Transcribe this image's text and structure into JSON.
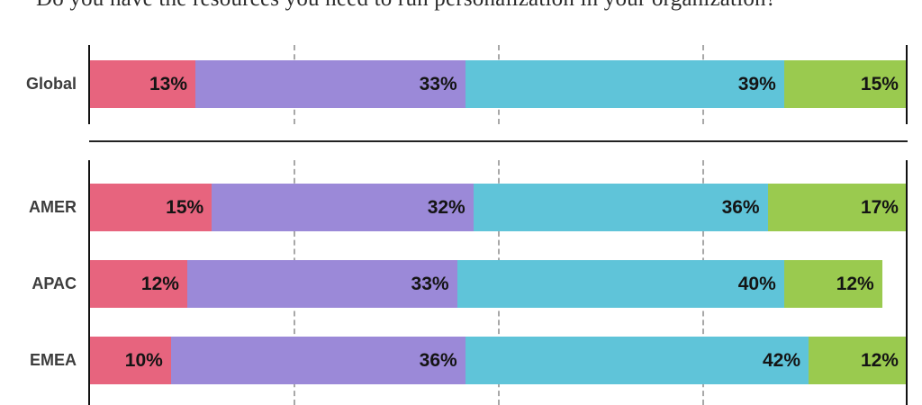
{
  "title": "Do you have the resources you need to run personalization in your organization?",
  "chart_data": {
    "type": "bar",
    "variant": "stacked-horizontal",
    "unit": "percent",
    "title": "Do you have the resources you need to run personalization in your organization?",
    "categories": [
      "Global",
      "AMER",
      "APAC",
      "EMEA"
    ],
    "series": [
      {
        "name": "pink",
        "color": "#E7647E",
        "values": [
          13,
          15,
          12,
          10
        ]
      },
      {
        "name": "purple",
        "color": "#9B89D8",
        "values": [
          33,
          32,
          33,
          36
        ]
      },
      {
        "name": "teal",
        "color": "#5FC4D9",
        "values": [
          39,
          36,
          40,
          42
        ]
      },
      {
        "name": "green",
        "color": "#9ACA4F",
        "values": [
          15,
          17,
          12,
          12
        ]
      }
    ],
    "value_labels": true,
    "xlim": [
      0,
      100
    ],
    "gridlines_percent": [
      25,
      50,
      75
    ],
    "grid": true,
    "legend": "none (cropped out of view)",
    "panels": [
      {
        "name": "global-panel",
        "categories": [
          "Global"
        ]
      },
      {
        "name": "regions-panel",
        "categories": [
          "AMER",
          "APAC",
          "EMEA"
        ]
      }
    ]
  },
  "styles": {
    "background": "#ffffff",
    "axis_color": "#111111",
    "grid_color": "#a8a8a8",
    "separator_color": "#222222",
    "category_label_color": "#3d3d3d",
    "value_label_color": "#141414",
    "title_color": "#2b2b2b"
  }
}
